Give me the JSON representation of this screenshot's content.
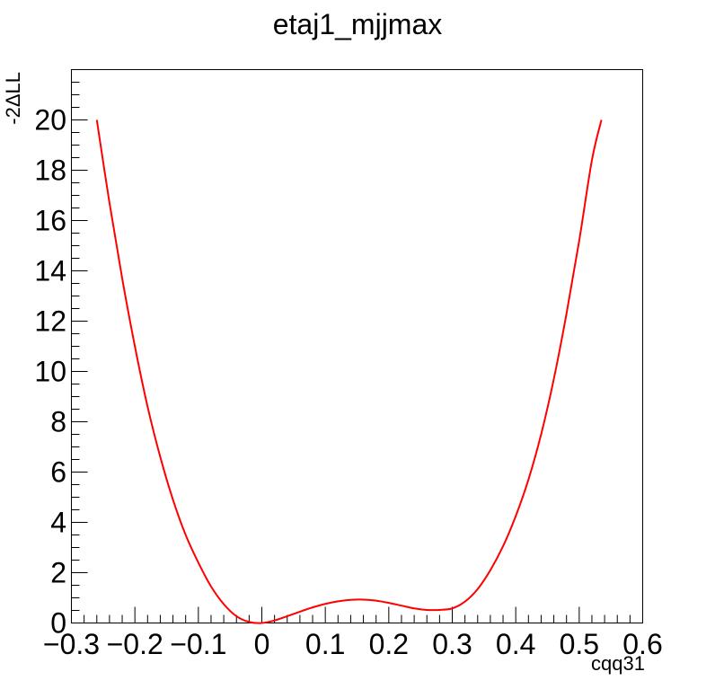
{
  "chart_data": {
    "type": "line",
    "title": "etaj1_mjjmax",
    "xlabel": "cqq31",
    "ylabel": "-2ΔLL",
    "xlim": [
      -0.3,
      0.6
    ],
    "ylim": [
      0,
      22
    ],
    "x_ticks": [
      {
        "value": -0.3,
        "label": "−0.3"
      },
      {
        "value": -0.2,
        "label": "−0.2"
      },
      {
        "value": -0.1,
        "label": "−0.1"
      },
      {
        "value": 0,
        "label": "0"
      },
      {
        "value": 0.1,
        "label": "0.1"
      },
      {
        "value": 0.2,
        "label": "0.2"
      },
      {
        "value": 0.3,
        "label": "0.3"
      },
      {
        "value": 0.4,
        "label": "0.4"
      },
      {
        "value": 0.5,
        "label": "0.5"
      },
      {
        "value": 0.6,
        "label": "0.6"
      }
    ],
    "y_ticks": [
      {
        "value": 0,
        "label": "0"
      },
      {
        "value": 2,
        "label": "2"
      },
      {
        "value": 4,
        "label": "4"
      },
      {
        "value": 6,
        "label": "6"
      },
      {
        "value": 8,
        "label": "8"
      },
      {
        "value": 10,
        "label": "10"
      },
      {
        "value": 12,
        "label": "12"
      },
      {
        "value": 14,
        "label": "14"
      },
      {
        "value": 16,
        "label": "16"
      },
      {
        "value": 18,
        "label": "18"
      },
      {
        "value": 20,
        "label": "20"
      }
    ],
    "grid": false,
    "series": [
      {
        "color": "#ff0000",
        "x": [
          -0.26,
          -0.24,
          -0.22,
          -0.2,
          -0.18,
          -0.16,
          -0.14,
          -0.12,
          -0.1,
          -0.08,
          -0.06,
          -0.04,
          -0.02,
          0.0,
          0.02,
          0.04,
          0.06,
          0.08,
          0.1,
          0.12,
          0.14,
          0.16,
          0.18,
          0.2,
          0.22,
          0.24,
          0.26,
          0.28,
          0.3,
          0.32,
          0.34,
          0.36,
          0.38,
          0.4,
          0.42,
          0.44,
          0.46,
          0.48,
          0.5,
          0.52,
          0.535
        ],
        "y": [
          20.0,
          16.7,
          13.7,
          11.0,
          8.6,
          6.6,
          4.9,
          3.5,
          2.4,
          1.45,
          0.75,
          0.27,
          0.04,
          0.0,
          0.1,
          0.27,
          0.45,
          0.62,
          0.76,
          0.86,
          0.92,
          0.93,
          0.89,
          0.8,
          0.69,
          0.58,
          0.52,
          0.52,
          0.58,
          0.85,
          1.35,
          2.1,
          3.05,
          4.25,
          5.7,
          7.5,
          9.7,
          12.3,
          15.2,
          18.4,
          20.0
        ]
      }
    ]
  }
}
